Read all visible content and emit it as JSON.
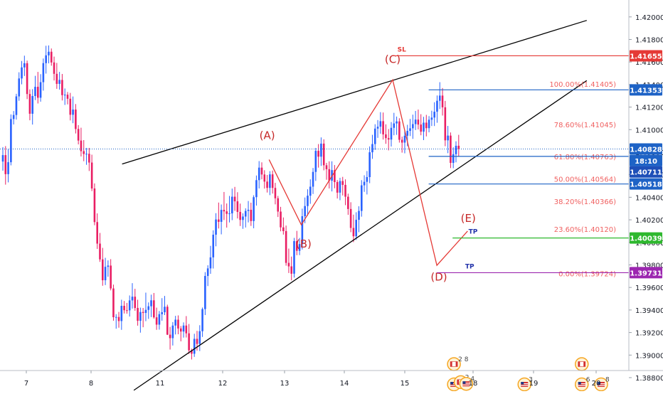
{
  "chart_data": {
    "type": "candlestick",
    "instrument_hint": "USD/CAD",
    "colors": {
      "up": "#2962ff",
      "down": "#e91e63",
      "wedge": "#000000",
      "pattern": "#e53935",
      "sl": "#e53935",
      "blue_level": "#1e63c6",
      "tp_green": "#2eb82e",
      "tp_purple": "#9c27b0",
      "fib_text": "#f06060",
      "current_line": "#1e63c6"
    },
    "x_ticks": [
      "7",
      "8",
      "11",
      "12",
      "13",
      "14",
      "15",
      "18",
      "19",
      "20"
    ],
    "y_ticks": [
      "1.42000",
      "1.41800",
      "1.41600",
      "1.41400",
      "1.41200",
      "1.41000",
      "1.40800",
      "1.40600",
      "1.40400",
      "1.40200",
      "1.40000",
      "1.39800",
      "1.39600",
      "1.39400",
      "1.39200",
      "1.39000",
      "1.38800"
    ],
    "y_range": [
      1.3868,
      1.4215
    ],
    "candles_per_day": 24,
    "candles": [
      [
        1.40717,
        1.40845,
        1.40636,
        1.40774
      ],
      [
        1.40774,
        1.40854,
        1.40512,
        1.40605
      ],
      [
        1.40605,
        1.40826,
        1.40532,
        1.40711
      ],
      [
        1.40711,
        1.41135,
        1.40683,
        1.41094
      ],
      [
        1.41094,
        1.41165,
        1.41046,
        1.4113
      ],
      [
        1.4113,
        1.41318,
        1.41089,
        1.41295
      ],
      [
        1.41295,
        1.41509,
        1.41256,
        1.41454
      ],
      [
        1.41454,
        1.41609,
        1.41402,
        1.41552
      ],
      [
        1.41552,
        1.41656,
        1.41476,
        1.41589
      ],
      [
        1.41589,
        1.41612,
        1.41271,
        1.41316
      ],
      [
        1.41316,
        1.41357,
        1.41083,
        1.41141
      ],
      [
        1.41141,
        1.41359,
        1.41045,
        1.41298
      ],
      [
        1.41298,
        1.41477,
        1.41262,
        1.4138
      ],
      [
        1.4138,
        1.41512,
        1.41232,
        1.41283
      ],
      [
        1.41283,
        1.41492,
        1.41248,
        1.41421
      ],
      [
        1.41421,
        1.41631,
        1.41346,
        1.4159
      ],
      [
        1.4159,
        1.41744,
        1.41497,
        1.41659
      ],
      [
        1.41659,
        1.41747,
        1.41588,
        1.41691
      ],
      [
        1.41691,
        1.4172,
        1.41567,
        1.41596
      ],
      [
        1.41596,
        1.41648,
        1.41436,
        1.41495
      ],
      [
        1.41495,
        1.41592,
        1.41362,
        1.41406
      ],
      [
        1.41406,
        1.41512,
        1.41355,
        1.41441
      ],
      [
        1.41441,
        1.41494,
        1.41259,
        1.41306
      ],
      [
        1.41306,
        1.41365,
        1.41219,
        1.4131
      ],
      [
        1.4131,
        1.41334,
        1.41224,
        1.41274
      ],
      [
        1.41274,
        1.41326,
        1.41082,
        1.41132
      ],
      [
        1.41132,
        1.41294,
        1.41057,
        1.41178
      ],
      [
        1.41178,
        1.41227,
        1.40966,
        1.41006
      ],
      [
        1.41006,
        1.4104,
        1.40869,
        1.40903
      ],
      [
        1.40903,
        1.41017,
        1.40762,
        1.40809
      ],
      [
        1.40809,
        1.40907,
        1.4072,
        1.40784
      ],
      [
        1.40784,
        1.40838,
        1.40688,
        1.40786
      ],
      [
        1.40786,
        1.40838,
        1.40633,
        1.40708
      ],
      [
        1.40708,
        1.40778,
        1.40455,
        1.40478
      ],
      [
        1.40478,
        1.40523,
        1.40152,
        1.4018
      ],
      [
        1.4018,
        1.40257,
        1.39942,
        1.39989
      ],
      [
        1.39989,
        1.40084,
        1.39827,
        1.39849
      ],
      [
        1.39849,
        1.39951,
        1.39615,
        1.39664
      ],
      [
        1.39664,
        1.39863,
        1.39621,
        1.39783
      ],
      [
        1.39783,
        1.3984,
        1.39695,
        1.39794
      ],
      [
        1.39794,
        1.39851,
        1.39574,
        1.39591
      ],
      [
        1.39591,
        1.39625,
        1.39305,
        1.39336
      ],
      [
        1.39336,
        1.39363,
        1.39234,
        1.39338
      ],
      [
        1.39338,
        1.39383,
        1.39243,
        1.39302
      ],
      [
        1.39302,
        1.39491,
        1.39224,
        1.39437
      ],
      [
        1.39437,
        1.3948,
        1.39369,
        1.39398
      ],
      [
        1.39398,
        1.39463,
        1.39367,
        1.39397
      ],
      [
        1.39397,
        1.39529,
        1.39342,
        1.39485
      ],
      [
        1.39485,
        1.39638,
        1.39413,
        1.39518
      ],
      [
        1.39518,
        1.39588,
        1.39393,
        1.39418
      ],
      [
        1.39418,
        1.39491,
        1.39261,
        1.39304
      ],
      [
        1.39304,
        1.39421,
        1.39199,
        1.39382
      ],
      [
        1.39382,
        1.39418,
        1.39247,
        1.39374
      ],
      [
        1.39374,
        1.39554,
        1.39301,
        1.39401
      ],
      [
        1.39401,
        1.39467,
        1.39321,
        1.39433
      ],
      [
        1.39433,
        1.39536,
        1.39337,
        1.39486
      ],
      [
        1.39486,
        1.39551,
        1.39323,
        1.39335
      ],
      [
        1.39335,
        1.39421,
        1.39224,
        1.3927
      ],
      [
        1.3927,
        1.39391,
        1.39226,
        1.39363
      ],
      [
        1.39363,
        1.39505,
        1.39305,
        1.3938
      ],
      [
        1.3938,
        1.39525,
        1.39355,
        1.39429
      ],
      [
        1.39429,
        1.39447,
        1.39178,
        1.39181
      ],
      [
        1.39181,
        1.3925,
        1.39049,
        1.3915
      ],
      [
        1.3915,
        1.39293,
        1.39085,
        1.39262
      ],
      [
        1.39262,
        1.39348,
        1.39183,
        1.39314
      ],
      [
        1.39314,
        1.39352,
        1.39185,
        1.39236
      ],
      [
        1.39236,
        1.39258,
        1.39122,
        1.39209
      ],
      [
        1.39209,
        1.3929,
        1.39155,
        1.39262
      ],
      [
        1.39262,
        1.39346,
        1.39156,
        1.39193
      ],
      [
        1.39193,
        1.39276,
        1.3901,
        1.39042
      ],
      [
        1.39042,
        1.39057,
        1.38961,
        1.39012
      ],
      [
        1.39012,
        1.39189,
        1.38984,
        1.39144
      ],
      [
        1.39144,
        1.39215,
        1.3904,
        1.39099
      ],
      [
        1.39099,
        1.39265,
        1.39036,
        1.39212
      ],
      [
        1.39212,
        1.39422,
        1.39161,
        1.39408
      ],
      [
        1.39408,
        1.39736,
        1.39355,
        1.39702
      ],
      [
        1.39702,
        1.39797,
        1.39612,
        1.39769
      ],
      [
        1.39769,
        1.39969,
        1.39721,
        1.39867
      ],
      [
        1.39867,
        1.40107,
        1.39768,
        1.40068
      ],
      [
        1.40068,
        1.40259,
        1.39965,
        1.40203
      ],
      [
        1.40203,
        1.40353,
        1.40123,
        1.40182
      ],
      [
        1.40182,
        1.40336,
        1.40071,
        1.40288
      ],
      [
        1.40288,
        1.40447,
        1.40198,
        1.40275
      ],
      [
        1.40275,
        1.40345,
        1.40131,
        1.40253
      ],
      [
        1.40253,
        1.40412,
        1.40177,
        1.40257
      ],
      [
        1.40257,
        1.40477,
        1.40197,
        1.40405
      ],
      [
        1.40405,
        1.40492,
        1.40279,
        1.40364
      ],
      [
        1.40364,
        1.40445,
        1.40212,
        1.4027
      ],
      [
        1.4027,
        1.40344,
        1.40145,
        1.40199
      ],
      [
        1.40199,
        1.40258,
        1.4012,
        1.40229
      ],
      [
        1.40229,
        1.40302,
        1.40132,
        1.40279
      ],
      [
        1.40279,
        1.40367,
        1.40177,
        1.40289
      ],
      [
        1.40289,
        1.40352,
        1.40146,
        1.40189
      ],
      [
        1.40189,
        1.40418,
        1.40125,
        1.40401
      ],
      [
        1.40401,
        1.40593,
        1.40326,
        1.40552
      ],
      [
        1.40552,
        1.40721,
        1.40478,
        1.40663
      ],
      [
        1.40663,
        1.4071,
        1.40559,
        1.40602
      ],
      [
        1.40602,
        1.4064,
        1.40477,
        1.40539
      ],
      [
        1.40539,
        1.40598,
        1.40442,
        1.40483
      ],
      [
        1.40483,
        1.40632,
        1.40419,
        1.40603
      ],
      [
        1.40603,
        1.40637,
        1.40433,
        1.40483
      ],
      [
        1.40483,
        1.40528,
        1.40337,
        1.40391
      ],
      [
        1.40391,
        1.40412,
        1.40225,
        1.40273
      ],
      [
        1.40273,
        1.40315,
        1.40098,
        1.40133
      ],
      [
        1.40133,
        1.40221,
        1.40069,
        1.401
      ],
      [
        1.401,
        1.40149,
        1.39793,
        1.39818
      ],
      [
        1.39818,
        1.39945,
        1.39728,
        1.39787
      ],
      [
        1.39787,
        1.39874,
        1.39663,
        1.39722
      ],
      [
        1.39722,
        1.4004,
        1.39687,
        1.40011
      ],
      [
        1.40011,
        1.40102,
        1.39886,
        1.39925
      ],
      [
        1.39925,
        1.40039,
        1.39887,
        1.39985
      ],
      [
        1.39985,
        1.40299,
        1.39937,
        1.40232
      ],
      [
        1.40232,
        1.40398,
        1.4017,
        1.40322
      ],
      [
        1.40322,
        1.40471,
        1.40237,
        1.40414
      ],
      [
        1.40414,
        1.40559,
        1.40342,
        1.40494
      ],
      [
        1.40494,
        1.4066,
        1.40429,
        1.40625
      ],
      [
        1.40625,
        1.40838,
        1.40545,
        1.40812
      ],
      [
        1.40812,
        1.40872,
        1.40663,
        1.4076
      ],
      [
        1.4076,
        1.40931,
        1.40678,
        1.40876
      ],
      [
        1.40876,
        1.40914,
        1.40639,
        1.40684
      ],
      [
        1.40684,
        1.40705,
        1.40555,
        1.40649
      ],
      [
        1.40649,
        1.40719,
        1.40478,
        1.40547
      ],
      [
        1.40547,
        1.40719,
        1.40452,
        1.40641
      ],
      [
        1.40641,
        1.40686,
        1.4048,
        1.40535
      ],
      [
        1.40535,
        1.40553,
        1.40389,
        1.40441
      ],
      [
        1.40441,
        1.40573,
        1.40374,
        1.40544
      ],
      [
        1.40544,
        1.40581,
        1.40416,
        1.4051
      ],
      [
        1.4051,
        1.40559,
        1.4033,
        1.40405
      ],
      [
        1.40405,
        1.40432,
        1.40244,
        1.40296
      ],
      [
        1.40296,
        1.40356,
        1.4009,
        1.40128
      ],
      [
        1.40128,
        1.40246,
        1.40002,
        1.40054
      ],
      [
        1.40054,
        1.40267,
        1.40021,
        1.402
      ],
      [
        1.402,
        1.4032,
        1.4009,
        1.40279
      ],
      [
        1.40279,
        1.40552,
        1.40228,
        1.40506
      ],
      [
        1.40506,
        1.40595,
        1.40448,
        1.40537
      ],
      [
        1.40537,
        1.40633,
        1.40425,
        1.40579
      ],
      [
        1.40579,
        1.40851,
        1.40525,
        1.40799
      ],
      [
        1.40799,
        1.40954,
        1.40741,
        1.40872
      ],
      [
        1.40872,
        1.41048,
        1.40821,
        1.41009
      ],
      [
        1.41009,
        1.41085,
        1.40927,
        1.41026
      ],
      [
        1.41026,
        1.41155,
        1.40964,
        1.41075
      ],
      [
        1.41075,
        1.41152,
        1.40912,
        1.40958
      ],
      [
        1.40958,
        1.41047,
        1.40874,
        1.40925
      ],
      [
        1.40925,
        1.41005,
        1.40816,
        1.40912
      ],
      [
        1.40912,
        1.41067,
        1.4085,
        1.41016
      ],
      [
        1.41016,
        1.41149,
        1.4095,
        1.41055
      ],
      [
        1.41055,
        1.41116,
        1.40954,
        1.41073
      ],
      [
        1.41073,
        1.41101,
        1.40885,
        1.4091
      ],
      [
        1.4091,
        1.40938,
        1.40796,
        1.40885
      ],
      [
        1.40885,
        1.40997,
        1.4079,
        1.40946
      ],
      [
        1.40946,
        1.41043,
        1.40853,
        1.40989
      ],
      [
        1.40989,
        1.41095,
        1.40943,
        1.41012
      ],
      [
        1.41012,
        1.41133,
        1.40918,
        1.41049
      ],
      [
        1.41049,
        1.41166,
        1.40996,
        1.41089
      ],
      [
        1.41089,
        1.41178,
        1.41002,
        1.41045
      ],
      [
        1.41045,
        1.41137,
        1.4095,
        1.40982
      ],
      [
        1.40982,
        1.41114,
        1.40907,
        1.41062
      ],
      [
        1.41062,
        1.41131,
        1.4094,
        1.41013
      ],
      [
        1.41013,
        1.4112,
        1.40976,
        1.41088
      ],
      [
        1.41088,
        1.41168,
        1.41032,
        1.41107
      ],
      [
        1.41107,
        1.41243,
        1.41032,
        1.41159
      ],
      [
        1.41159,
        1.41303,
        1.41061,
        1.41256
      ],
      [
        1.41256,
        1.41421,
        1.41183,
        1.41302
      ],
      [
        1.41302,
        1.41369,
        1.41125,
        1.41198
      ],
      [
        1.41198,
        1.41255,
        1.40853,
        1.40905
      ],
      [
        1.40905,
        1.41033,
        1.40791,
        1.40947
      ],
      [
        1.40947,
        1.40975,
        1.40659,
        1.40705
      ],
      [
        1.40705,
        1.40843,
        1.40658,
        1.40782
      ],
      [
        1.40782,
        1.40897,
        1.4071,
        1.40857
      ],
      [
        1.40857,
        1.40954,
        1.40763,
        1.40828
      ]
    ],
    "wedge_lines": [
      {
        "from": {
          "x": 1.45,
          "y": 1.40695
        },
        "to": {
          "x": 8.85,
          "y": 1.41969
        }
      },
      {
        "from": {
          "x": 1.62,
          "y": 1.38688
        },
        "to": {
          "x": 8.85,
          "y": 1.41435
        }
      }
    ],
    "pattern_path": [
      {
        "x": 3.75,
        "y": 1.40734
      },
      {
        "x": 4.28,
        "y": 1.40156
      },
      {
        "x": 5.8,
        "y": 1.41442
      },
      {
        "x": 6.47,
        "y": 1.39796
      },
      {
        "x": 6.92,
        "y": 1.401
      }
    ],
    "wave_labels": [
      {
        "text": "(A)",
        "x": 3.72,
        "y": 1.40916
      },
      {
        "text": "(B)",
        "x": 4.32,
        "y": 1.39953
      },
      {
        "text": "(C)",
        "x": 5.8,
        "y": 1.41591
      },
      {
        "text": "(D)",
        "x": 6.5,
        "y": 1.39661
      },
      {
        "text": "(E)",
        "x": 6.93,
        "y": 1.4018
      }
    ],
    "fib_levels": [
      {
        "label": "100.00%(1.41405)",
        "price": 1.41405
      },
      {
        "label": "78.60%(1.41045)",
        "price": 1.41045
      },
      {
        "label": "61.80%(1.40763)",
        "price": 1.40763
      },
      {
        "label": "50.00%(1.40564)",
        "price": 1.40564
      },
      {
        "label": "38.20%(1.40366)",
        "price": 1.40366
      },
      {
        "label": "23.60%(1.40120)",
        "price": 1.4012
      },
      {
        "label": "0.00%(1.39724)",
        "price": 1.39724
      }
    ],
    "hlines": [
      {
        "name": "stop-loss-line",
        "price": 1.41655,
        "x_start": 5.8,
        "color_key": "sl",
        "text": "SL",
        "text_x": 5.95
      },
      {
        "name": "level-line-1",
        "price": 1.41353,
        "x_start": 6.35,
        "color_key": "blue_level"
      },
      {
        "name": "level-line-2",
        "price": 1.40763,
        "x_start": 6.35,
        "color_key": "blue_level"
      },
      {
        "name": "level-line-3",
        "price": 1.40518,
        "x_start": 6.35,
        "color_key": "blue_level"
      },
      {
        "name": "take-profit-line-1",
        "price": 1.40039,
        "x_start": 6.7,
        "color_key": "tp_green",
        "text": "TP",
        "text_x": 7.0
      },
      {
        "name": "take-profit-line-2",
        "price": 1.39731,
        "x_start": 6.47,
        "color_key": "tp_purple",
        "text": "TP",
        "text_x": 6.95
      }
    ],
    "price_tags": [
      {
        "text": "1.41655",
        "price": 1.41655,
        "color": "#e53935"
      },
      {
        "text": "1.41353",
        "price": 1.41353,
        "color": "#1e63c6"
      },
      {
        "text": "1.40828",
        "price": 1.40828,
        "color": "#1e63c6"
      },
      {
        "text": "18:10",
        "price": 1.40725,
        "color": "#1e63c6"
      },
      {
        "text": "1.40711",
        "price": 1.40625,
        "color": "#1e4fb8"
      },
      {
        "text": "1.40518",
        "price": 1.40518,
        "color": "#1e63c6"
      },
      {
        "text": "1.40039",
        "price": 1.40039,
        "color": "#2eb82e"
      },
      {
        "text": "1.39731",
        "price": 1.39731,
        "color": "#9c27b0"
      }
    ],
    "current_price": 1.40828,
    "event_markers": [
      {
        "x": 6.72,
        "y": 1.3892,
        "flag": "ca",
        "text": "2 8"
      },
      {
        "x": 6.72,
        "y": 1.3874,
        "flag": "us",
        "text": "6"
      },
      {
        "x": 6.82,
        "y": 1.3876,
        "flag": "ca",
        "text": "2"
      },
      {
        "x": 6.9,
        "y": 1.38745,
        "flag": "us",
        "text": "4"
      },
      {
        "x": 7.85,
        "y": 1.3874,
        "flag": "us",
        "text": "3"
      },
      {
        "x": 8.77,
        "y": 1.3892,
        "flag": "ca",
        "text": ""
      },
      {
        "x": 8.77,
        "y": 1.3874,
        "flag": "us",
        "text": "6"
      },
      {
        "x": 9.08,
        "y": 1.3874,
        "flag": "us",
        "text": "8"
      }
    ]
  }
}
